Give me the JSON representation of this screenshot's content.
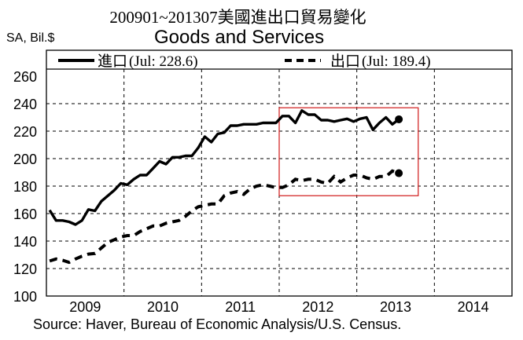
{
  "header": {
    "title": "200901~201307美國進出口貿易變化",
    "subtitle": "Goods and Services",
    "units": "SA, Bil.$"
  },
  "legend": {
    "imports_label": "進口",
    "imports_note": "(Jul: 228.6)",
    "exports_label": "出口",
    "exports_note": "(Jul: 189.4)"
  },
  "footer": {
    "source": "Source:  Haver, Bureau of Economic Analysis/U.S. Census."
  },
  "colors": {
    "line": "#000000",
    "highlight_box": "#d42a2a",
    "grid": "#000000"
  },
  "chart_data": {
    "type": "line",
    "title": "200901~201307美國進出口貿易變化 — Goods and Services",
    "xlabel": "",
    "ylabel": "SA, Bil.$",
    "ylim": [
      100,
      260
    ],
    "yticks": [
      100,
      120,
      140,
      160,
      180,
      200,
      220,
      240,
      260
    ],
    "xticks": [
      "2009",
      "2010",
      "2011",
      "2012",
      "2013",
      "2014"
    ],
    "xrange": [
      "2009-01",
      "2014-12"
    ],
    "grid": true,
    "legend_position": "top (inside box above plot)",
    "x_start": "2009-01",
    "x_end": "2013-07",
    "frequency": "monthly",
    "series": [
      {
        "name": "進口 (Imports)",
        "style": "solid",
        "last_value": 228.6,
        "values": [
          162.5,
          155,
          155,
          154,
          152,
          155,
          163,
          162,
          169,
          173,
          177,
          182,
          181,
          185,
          188,
          188,
          193,
          198,
          196,
          201,
          201,
          202,
          202,
          208,
          216,
          212,
          218,
          219,
          224,
          224,
          225,
          225,
          225,
          226,
          226,
          226,
          231,
          231,
          226,
          235,
          232,
          232,
          228,
          228,
          227,
          228,
          229,
          227,
          229,
          230,
          221,
          226,
          230,
          225,
          228.6
        ]
      },
      {
        "name": "出口 (Exports)",
        "style": "dashed",
        "last_value": 189.4,
        "values": [
          125.5,
          127,
          126,
          124.5,
          127,
          129,
          130.5,
          131,
          135,
          139,
          141,
          143,
          144,
          144,
          147,
          149,
          151,
          151,
          153,
          154,
          155,
          158,
          162,
          165,
          166,
          167,
          167,
          173,
          175,
          176,
          174,
          178,
          180,
          181,
          180,
          179,
          179,
          181,
          185,
          184,
          185,
          185,
          183,
          182,
          187,
          183,
          186,
          188,
          188,
          186,
          185,
          187,
          187,
          191,
          189.4
        ]
      }
    ],
    "annotations": [
      {
        "type": "rectangle",
        "color": "#d42a2a",
        "x_from": "2012-01",
        "x_to": "2013-12",
        "y_from": 173,
        "y_to": 237,
        "note": "highlight box around 2012–2013 data"
      },
      {
        "type": "endpoint-marker",
        "series": "進口",
        "x": "2013-07",
        "y": 228.6
      },
      {
        "type": "endpoint-marker",
        "series": "出口",
        "x": "2013-07",
        "y": 189.4
      }
    ]
  }
}
